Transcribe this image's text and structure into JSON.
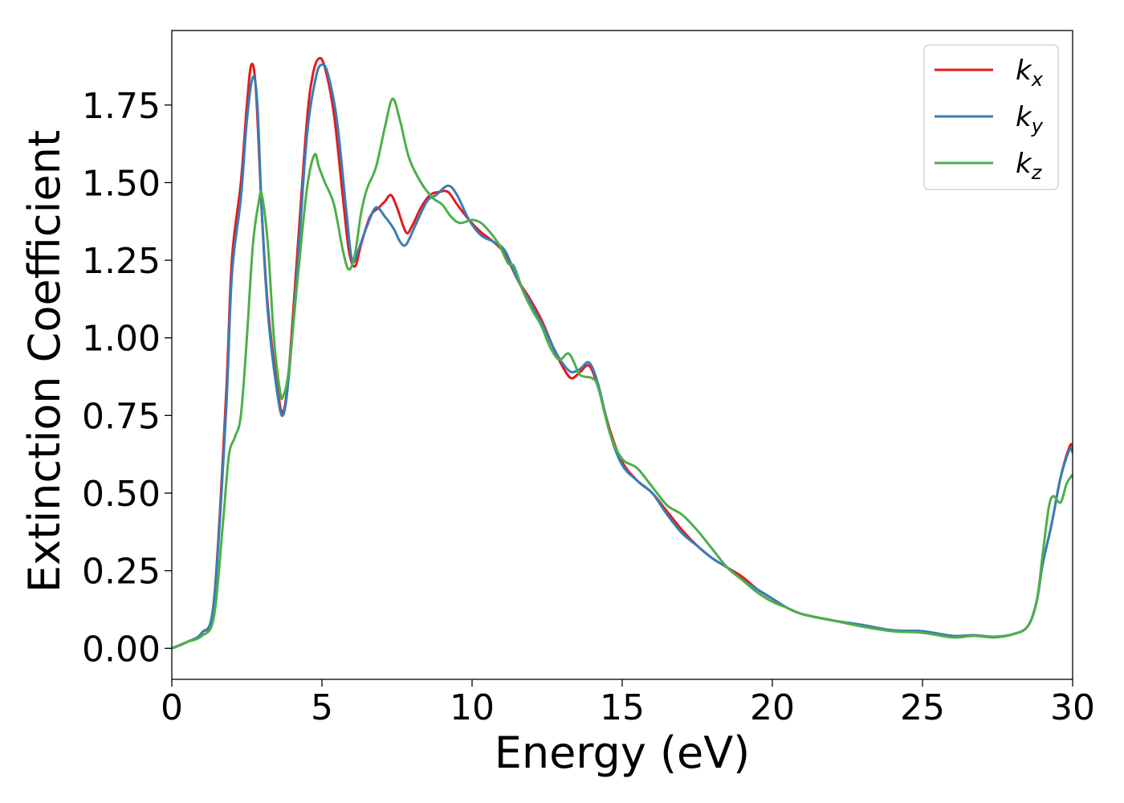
{
  "chart_data": {
    "type": "line",
    "title": "",
    "xlabel": "Energy (eV)",
    "ylabel": "Extinction Coefficient",
    "xlim": [
      0,
      30
    ],
    "ylim": [
      -0.1,
      1.99
    ],
    "xticks": [
      0,
      5,
      10,
      15,
      20,
      25,
      30
    ],
    "xtick_labels": [
      "0",
      "5",
      "10",
      "15",
      "20",
      "25",
      "30"
    ],
    "yticks": [
      0.0,
      0.25,
      0.5,
      0.75,
      1.0,
      1.25,
      1.5,
      1.75
    ],
    "ytick_labels": [
      "0.00",
      "0.25",
      "0.50",
      "0.75",
      "1.00",
      "1.25",
      "1.50",
      "1.75"
    ],
    "grid": false,
    "legend_position": "top-right",
    "series": [
      {
        "name": "kx",
        "label_base": "k",
        "label_sub": "x",
        "color": "#e41a1c",
        "points": [
          [
            0,
            0
          ],
          [
            0.5,
            0.02
          ],
          [
            1,
            0.05
          ],
          [
            1.4,
            0.15
          ],
          [
            1.8,
            0.8
          ],
          [
            2.0,
            1.25
          ],
          [
            2.3,
            1.5
          ],
          [
            2.5,
            1.75
          ],
          [
            2.65,
            1.88
          ],
          [
            2.8,
            1.8
          ],
          [
            3.0,
            1.4
          ],
          [
            3.2,
            1.1
          ],
          [
            3.5,
            0.85
          ],
          [
            3.7,
            0.76
          ],
          [
            3.9,
            0.9
          ],
          [
            4.2,
            1.3
          ],
          [
            4.5,
            1.7
          ],
          [
            4.7,
            1.85
          ],
          [
            4.9,
            1.9
          ],
          [
            5.1,
            1.87
          ],
          [
            5.4,
            1.72
          ],
          [
            5.7,
            1.45
          ],
          [
            5.9,
            1.28
          ],
          [
            6.1,
            1.23
          ],
          [
            6.3,
            1.3
          ],
          [
            6.6,
            1.39
          ],
          [
            6.9,
            1.42
          ],
          [
            7.1,
            1.44
          ],
          [
            7.3,
            1.46
          ],
          [
            7.5,
            1.42
          ],
          [
            7.8,
            1.34
          ],
          [
            8.0,
            1.36
          ],
          [
            8.3,
            1.42
          ],
          [
            8.6,
            1.46
          ],
          [
            8.9,
            1.47
          ],
          [
            9.2,
            1.47
          ],
          [
            9.5,
            1.43
          ],
          [
            9.9,
            1.38
          ],
          [
            10.3,
            1.34
          ],
          [
            10.7,
            1.31
          ],
          [
            11.1,
            1.27
          ],
          [
            11.5,
            1.19
          ],
          [
            11.9,
            1.13
          ],
          [
            12.3,
            1.06
          ],
          [
            12.7,
            0.97
          ],
          [
            13.0,
            0.91
          ],
          [
            13.3,
            0.87
          ],
          [
            13.6,
            0.89
          ],
          [
            13.9,
            0.91
          ],
          [
            14.2,
            0.84
          ],
          [
            14.6,
            0.7
          ],
          [
            15.0,
            0.6
          ],
          [
            15.5,
            0.54
          ],
          [
            16.0,
            0.5
          ],
          [
            16.5,
            0.44
          ],
          [
            17.0,
            0.38
          ],
          [
            17.5,
            0.33
          ],
          [
            18.0,
            0.29
          ],
          [
            18.5,
            0.26
          ],
          [
            19.0,
            0.23
          ],
          [
            19.5,
            0.19
          ],
          [
            20.0,
            0.16
          ],
          [
            20.5,
            0.13
          ],
          [
            21.0,
            0.11
          ],
          [
            22.0,
            0.09
          ],
          [
            23.0,
            0.075
          ],
          [
            24.0,
            0.058
          ],
          [
            25.0,
            0.055
          ],
          [
            26.0,
            0.04
          ],
          [
            26.7,
            0.042
          ],
          [
            27.4,
            0.037
          ],
          [
            28.0,
            0.045
          ],
          [
            28.5,
            0.07
          ],
          [
            28.8,
            0.15
          ],
          [
            29.0,
            0.27
          ],
          [
            29.3,
            0.4
          ],
          [
            29.6,
            0.55
          ],
          [
            29.9,
            0.65
          ],
          [
            30.0,
            0.65
          ]
        ]
      },
      {
        "name": "ky",
        "label_base": "k",
        "label_sub": "y",
        "color": "#377eb8",
        "points": [
          [
            0,
            0
          ],
          [
            0.5,
            0.02
          ],
          [
            1,
            0.05
          ],
          [
            1.4,
            0.15
          ],
          [
            1.8,
            0.75
          ],
          [
            2.0,
            1.2
          ],
          [
            2.3,
            1.45
          ],
          [
            2.5,
            1.7
          ],
          [
            2.7,
            1.84
          ],
          [
            2.85,
            1.75
          ],
          [
            3.0,
            1.4
          ],
          [
            3.2,
            1.08
          ],
          [
            3.5,
            0.83
          ],
          [
            3.7,
            0.75
          ],
          [
            3.9,
            0.88
          ],
          [
            4.2,
            1.25
          ],
          [
            4.5,
            1.65
          ],
          [
            4.8,
            1.84
          ],
          [
            5.0,
            1.88
          ],
          [
            5.2,
            1.85
          ],
          [
            5.5,
            1.7
          ],
          [
            5.8,
            1.42
          ],
          [
            6.0,
            1.25
          ],
          [
            6.2,
            1.28
          ],
          [
            6.5,
            1.36
          ],
          [
            6.8,
            1.42
          ],
          [
            7.1,
            1.39
          ],
          [
            7.4,
            1.35
          ],
          [
            7.6,
            1.31
          ],
          [
            7.8,
            1.3
          ],
          [
            8.1,
            1.36
          ],
          [
            8.5,
            1.44
          ],
          [
            8.8,
            1.46
          ],
          [
            9.2,
            1.49
          ],
          [
            9.5,
            1.46
          ],
          [
            9.9,
            1.38
          ],
          [
            10.3,
            1.33
          ],
          [
            10.7,
            1.31
          ],
          [
            11.1,
            1.28
          ],
          [
            11.5,
            1.19
          ],
          [
            11.9,
            1.12
          ],
          [
            12.3,
            1.05
          ],
          [
            12.7,
            0.97
          ],
          [
            13.0,
            0.92
          ],
          [
            13.3,
            0.89
          ],
          [
            13.6,
            0.9
          ],
          [
            13.9,
            0.92
          ],
          [
            14.2,
            0.85
          ],
          [
            14.6,
            0.69
          ],
          [
            15.0,
            0.59
          ],
          [
            15.5,
            0.54
          ],
          [
            16.0,
            0.5
          ],
          [
            16.5,
            0.43
          ],
          [
            17.0,
            0.37
          ],
          [
            17.5,
            0.33
          ],
          [
            18.0,
            0.29
          ],
          [
            18.5,
            0.26
          ],
          [
            19.0,
            0.22
          ],
          [
            19.5,
            0.19
          ],
          [
            20.0,
            0.16
          ],
          [
            20.5,
            0.13
          ],
          [
            21.0,
            0.11
          ],
          [
            22.0,
            0.09
          ],
          [
            23.0,
            0.075
          ],
          [
            24.0,
            0.058
          ],
          [
            25.0,
            0.055
          ],
          [
            26.0,
            0.04
          ],
          [
            26.7,
            0.042
          ],
          [
            27.4,
            0.037
          ],
          [
            28.0,
            0.045
          ],
          [
            28.5,
            0.07
          ],
          [
            28.8,
            0.15
          ],
          [
            29.0,
            0.27
          ],
          [
            29.3,
            0.4
          ],
          [
            29.6,
            0.55
          ],
          [
            29.9,
            0.64
          ],
          [
            30.0,
            0.63
          ]
        ]
      },
      {
        "name": "kz",
        "label_base": "k",
        "label_sub": "z",
        "color": "#4daf4a",
        "points": [
          [
            0,
            0
          ],
          [
            0.5,
            0.02
          ],
          [
            1,
            0.04
          ],
          [
            1.4,
            0.1
          ],
          [
            1.7,
            0.4
          ],
          [
            1.9,
            0.62
          ],
          [
            2.1,
            0.68
          ],
          [
            2.3,
            0.75
          ],
          [
            2.5,
            1.0
          ],
          [
            2.7,
            1.3
          ],
          [
            2.9,
            1.44
          ],
          [
            3.0,
            1.46
          ],
          [
            3.2,
            1.3
          ],
          [
            3.4,
            1.0
          ],
          [
            3.6,
            0.83
          ],
          [
            3.7,
            0.81
          ],
          [
            3.9,
            0.9
          ],
          [
            4.2,
            1.2
          ],
          [
            4.5,
            1.48
          ],
          [
            4.75,
            1.59
          ],
          [
            4.9,
            1.55
          ],
          [
            5.1,
            1.5
          ],
          [
            5.4,
            1.43
          ],
          [
            5.7,
            1.28
          ],
          [
            5.9,
            1.22
          ],
          [
            6.1,
            1.27
          ],
          [
            6.3,
            1.4
          ],
          [
            6.5,
            1.48
          ],
          [
            6.8,
            1.55
          ],
          [
            7.1,
            1.68
          ],
          [
            7.35,
            1.77
          ],
          [
            7.6,
            1.7
          ],
          [
            7.9,
            1.58
          ],
          [
            8.3,
            1.5
          ],
          [
            8.7,
            1.45
          ],
          [
            9.0,
            1.43
          ],
          [
            9.3,
            1.39
          ],
          [
            9.6,
            1.37
          ],
          [
            10.0,
            1.38
          ],
          [
            10.3,
            1.37
          ],
          [
            10.6,
            1.34
          ],
          [
            10.9,
            1.3
          ],
          [
            11.2,
            1.24
          ],
          [
            11.4,
            1.23
          ],
          [
            11.7,
            1.15
          ],
          [
            12.0,
            1.09
          ],
          [
            12.3,
            1.04
          ],
          [
            12.6,
            0.97
          ],
          [
            12.9,
            0.93
          ],
          [
            13.2,
            0.95
          ],
          [
            13.4,
            0.92
          ],
          [
            13.6,
            0.88
          ],
          [
            14.0,
            0.87
          ],
          [
            14.2,
            0.84
          ],
          [
            14.6,
            0.69
          ],
          [
            15.0,
            0.61
          ],
          [
            15.5,
            0.58
          ],
          [
            16.0,
            0.52
          ],
          [
            16.5,
            0.46
          ],
          [
            17.0,
            0.43
          ],
          [
            17.5,
            0.38
          ],
          [
            18.0,
            0.32
          ],
          [
            18.5,
            0.26
          ],
          [
            19.0,
            0.22
          ],
          [
            19.5,
            0.18
          ],
          [
            20.0,
            0.15
          ],
          [
            20.5,
            0.13
          ],
          [
            21.0,
            0.11
          ],
          [
            22.0,
            0.09
          ],
          [
            23.0,
            0.07
          ],
          [
            24.0,
            0.055
          ],
          [
            25.0,
            0.05
          ],
          [
            26.0,
            0.035
          ],
          [
            26.7,
            0.04
          ],
          [
            27.4,
            0.035
          ],
          [
            28.0,
            0.045
          ],
          [
            28.5,
            0.07
          ],
          [
            28.8,
            0.15
          ],
          [
            29.0,
            0.3
          ],
          [
            29.2,
            0.45
          ],
          [
            29.35,
            0.49
          ],
          [
            29.6,
            0.47
          ],
          [
            29.8,
            0.53
          ],
          [
            30.0,
            0.56
          ]
        ]
      }
    ]
  }
}
